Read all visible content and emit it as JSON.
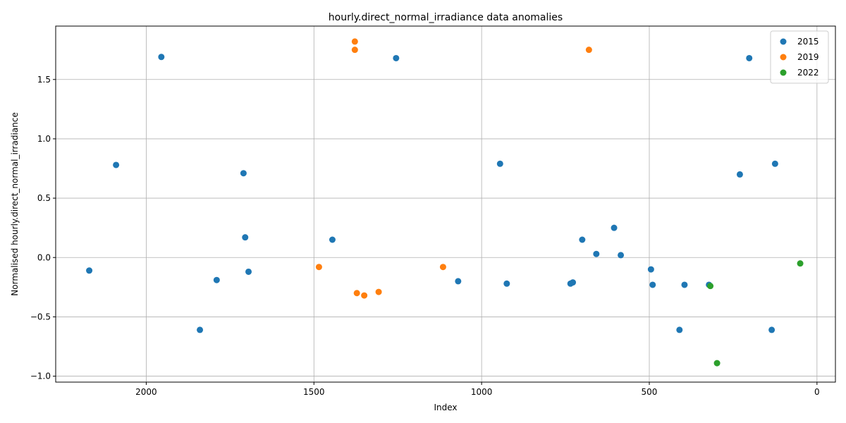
{
  "chart_data": {
    "type": "scatter",
    "title": "hourly.direct_normal_irradiance data anomalies",
    "xlabel": "Index",
    "ylabel": "Normalised hourly.direct_normal_irradiance",
    "xlim": [
      2270,
      -55
    ],
    "ylim": [
      -1.05,
      1.95
    ],
    "x_inverted": true,
    "xticks": [
      2000,
      1500,
      1000,
      500,
      0
    ],
    "yticks": [
      -1.0,
      -0.5,
      0.0,
      0.5,
      1.0,
      1.5
    ],
    "xtick_labels": [
      "2000",
      "1500",
      "1000",
      "500",
      "0"
    ],
    "ytick_labels": [
      "−1.0",
      "−0.5",
      "0.0",
      "0.5",
      "1.0",
      "1.5"
    ],
    "grid": true,
    "legend_position": "top-right",
    "series": [
      {
        "name": "2015",
        "color": "#1f77b4",
        "points": [
          [
            2170,
            -0.11
          ],
          [
            2090,
            0.78
          ],
          [
            1955,
            1.69
          ],
          [
            1840,
            -0.61
          ],
          [
            1790,
            -0.19
          ],
          [
            1710,
            0.71
          ],
          [
            1705,
            0.17
          ],
          [
            1695,
            -0.12
          ],
          [
            1445,
            0.15
          ],
          [
            1255,
            1.68
          ],
          [
            1070,
            -0.2
          ],
          [
            945,
            0.79
          ],
          [
            925,
            -0.22
          ],
          [
            735,
            -0.22
          ],
          [
            728,
            -0.21
          ],
          [
            700,
            0.15
          ],
          [
            658,
            0.03
          ],
          [
            605,
            0.25
          ],
          [
            585,
            0.02
          ],
          [
            495,
            -0.1
          ],
          [
            490,
            -0.23
          ],
          [
            410,
            -0.61
          ],
          [
            395,
            -0.23
          ],
          [
            322,
            -0.23
          ],
          [
            230,
            0.7
          ],
          [
            202,
            1.68
          ],
          [
            135,
            -0.61
          ],
          [
            125,
            0.79
          ]
        ]
      },
      {
        "name": "2019",
        "color": "#ff7f0e",
        "points": [
          [
            1485,
            -0.08
          ],
          [
            1378,
            1.82
          ],
          [
            1378,
            1.75
          ],
          [
            1372,
            -0.3
          ],
          [
            1350,
            -0.32
          ],
          [
            1307,
            -0.29
          ],
          [
            1115,
            -0.08
          ],
          [
            680,
            1.75
          ]
        ]
      },
      {
        "name": "2022",
        "color": "#2ca02c",
        "points": [
          [
            318,
            -0.24
          ],
          [
            298,
            -0.89
          ],
          [
            50,
            -0.05
          ]
        ]
      }
    ]
  }
}
